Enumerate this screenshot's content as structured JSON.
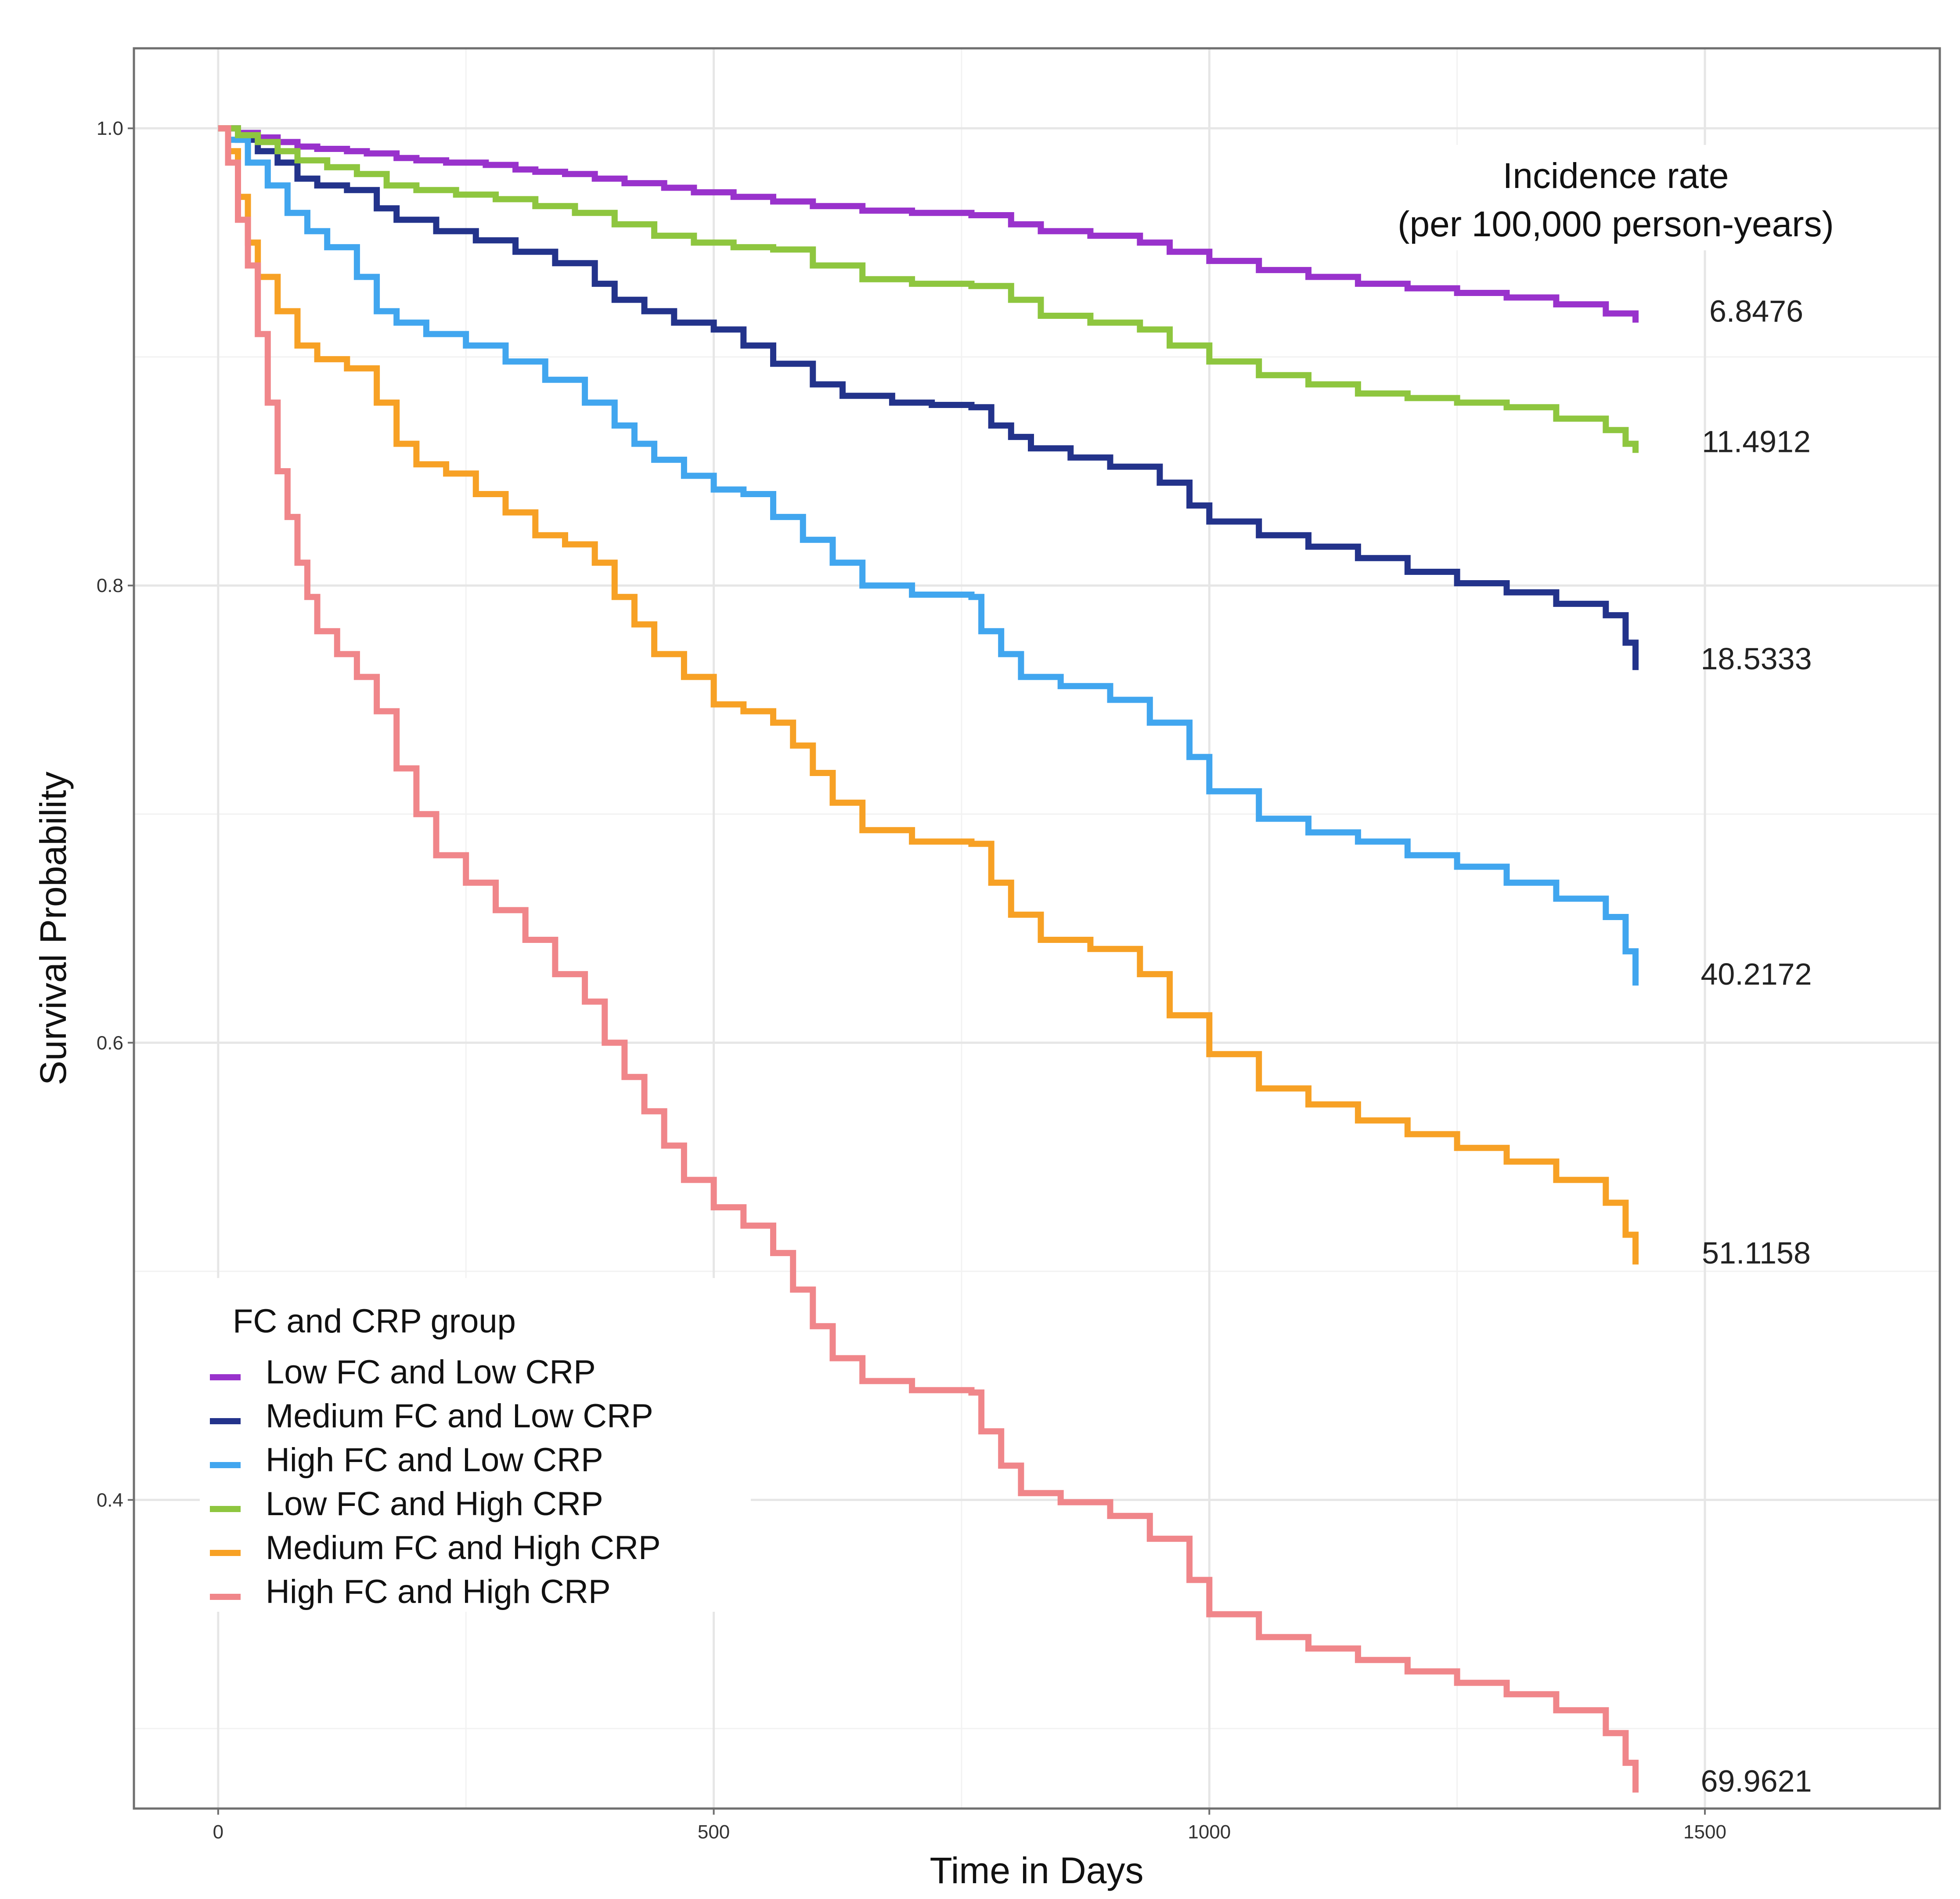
{
  "chart_data": {
    "type": "line",
    "title": "",
    "xlabel": "Time in Days",
    "ylabel": "Survival Probability",
    "xlim": [
      -85,
      1737
    ],
    "ylim": [
      0.265,
      1.035
    ],
    "x_ticks": [
      0,
      500,
      1000,
      1500
    ],
    "x_tick_labels": [
      "0",
      "500",
      "1000",
      "1500"
    ],
    "y_ticks": [
      0.4,
      0.6,
      0.8,
      1.0
    ],
    "y_tick_labels": [
      "0.4",
      "0.6",
      "0.8",
      "1.0"
    ],
    "grid": true,
    "legend_title": "FC and CRP group",
    "legend_position": "bottom-left",
    "annotation": {
      "line1": "Incidence rate",
      "line2": "(per 100,000 person-years)"
    },
    "series": [
      {
        "name": "Low FC and Low CRP",
        "color": "#9932cc",
        "incidence_rate": "6.8476",
        "x": [
          0,
          20,
          40,
          60,
          80,
          100,
          130,
          150,
          180,
          200,
          230,
          270,
          300,
          320,
          350,
          380,
          410,
          450,
          480,
          520,
          560,
          600,
          650,
          700,
          760,
          800,
          830,
          880,
          930,
          960,
          1000,
          1050,
          1100,
          1150,
          1200,
          1250,
          1300,
          1350,
          1400,
          1430
        ],
        "y": [
          1.0,
          0.998,
          0.996,
          0.994,
          0.992,
          0.991,
          0.99,
          0.989,
          0.987,
          0.986,
          0.985,
          0.984,
          0.982,
          0.981,
          0.98,
          0.978,
          0.976,
          0.974,
          0.972,
          0.97,
          0.968,
          0.966,
          0.964,
          0.963,
          0.962,
          0.958,
          0.955,
          0.953,
          0.95,
          0.946,
          0.942,
          0.938,
          0.935,
          0.932,
          0.93,
          0.928,
          0.926,
          0.923,
          0.919,
          0.915
        ]
      },
      {
        "name": "Medium FC and Low CRP",
        "color": "#23338b",
        "incidence_rate": "18.5333",
        "x": [
          0,
          20,
          40,
          60,
          80,
          100,
          130,
          160,
          180,
          220,
          260,
          300,
          340,
          380,
          400,
          430,
          460,
          500,
          530,
          560,
          600,
          630,
          680,
          720,
          760,
          780,
          800,
          820,
          860,
          900,
          950,
          980,
          1000,
          1050,
          1100,
          1150,
          1200,
          1250,
          1300,
          1350,
          1400,
          1420,
          1430
        ],
        "y": [
          1.0,
          0.995,
          0.99,
          0.985,
          0.978,
          0.975,
          0.973,
          0.965,
          0.96,
          0.955,
          0.951,
          0.946,
          0.941,
          0.932,
          0.925,
          0.92,
          0.915,
          0.912,
          0.905,
          0.897,
          0.888,
          0.883,
          0.88,
          0.879,
          0.878,
          0.87,
          0.865,
          0.86,
          0.856,
          0.852,
          0.845,
          0.835,
          0.828,
          0.822,
          0.817,
          0.812,
          0.806,
          0.801,
          0.797,
          0.792,
          0.787,
          0.775,
          0.763
        ]
      },
      {
        "name": "High FC and Low CRP",
        "color": "#41a6ef",
        "incidence_rate": "40.2172",
        "x": [
          0,
          10,
          30,
          50,
          70,
          90,
          110,
          140,
          160,
          180,
          210,
          250,
          290,
          330,
          370,
          400,
          420,
          440,
          470,
          500,
          530,
          560,
          590,
          620,
          650,
          700,
          760,
          770,
          790,
          810,
          850,
          900,
          940,
          980,
          1000,
          1050,
          1100,
          1150,
          1200,
          1250,
          1300,
          1350,
          1400,
          1420,
          1430
        ],
        "y": [
          1.0,
          0.995,
          0.985,
          0.975,
          0.963,
          0.955,
          0.948,
          0.935,
          0.92,
          0.915,
          0.91,
          0.905,
          0.898,
          0.89,
          0.88,
          0.87,
          0.862,
          0.855,
          0.848,
          0.842,
          0.84,
          0.83,
          0.82,
          0.81,
          0.8,
          0.796,
          0.795,
          0.78,
          0.77,
          0.76,
          0.756,
          0.75,
          0.74,
          0.725,
          0.71,
          0.698,
          0.692,
          0.688,
          0.682,
          0.677,
          0.67,
          0.663,
          0.655,
          0.64,
          0.625
        ]
      },
      {
        "name": "Low FC and High CRP",
        "color": "#8ec63f",
        "incidence_rate": "11.4912",
        "x": [
          0,
          20,
          40,
          60,
          80,
          110,
          140,
          170,
          200,
          240,
          280,
          320,
          360,
          400,
          440,
          480,
          520,
          560,
          600,
          650,
          700,
          760,
          800,
          830,
          880,
          930,
          960,
          1000,
          1050,
          1100,
          1150,
          1200,
          1250,
          1300,
          1350,
          1400,
          1420,
          1430
        ],
        "y": [
          1.0,
          0.997,
          0.994,
          0.99,
          0.986,
          0.983,
          0.98,
          0.975,
          0.973,
          0.971,
          0.969,
          0.966,
          0.963,
          0.958,
          0.953,
          0.95,
          0.948,
          0.947,
          0.94,
          0.934,
          0.932,
          0.931,
          0.925,
          0.918,
          0.915,
          0.912,
          0.905,
          0.898,
          0.892,
          0.888,
          0.884,
          0.882,
          0.88,
          0.878,
          0.873,
          0.868,
          0.862,
          0.858
        ]
      },
      {
        "name": "Medium FC and High CRP",
        "color": "#f7a125",
        "incidence_rate": "51.1158",
        "x": [
          0,
          10,
          20,
          30,
          40,
          60,
          80,
          100,
          130,
          160,
          180,
          200,
          230,
          260,
          290,
          320,
          350,
          380,
          400,
          420,
          440,
          470,
          500,
          530,
          560,
          580,
          600,
          620,
          650,
          700,
          760,
          780,
          800,
          830,
          880,
          930,
          960,
          1000,
          1050,
          1100,
          1150,
          1200,
          1250,
          1300,
          1350,
          1400,
          1420,
          1430
        ],
        "y": [
          1.0,
          0.99,
          0.97,
          0.95,
          0.935,
          0.92,
          0.905,
          0.899,
          0.895,
          0.88,
          0.862,
          0.853,
          0.849,
          0.84,
          0.832,
          0.822,
          0.818,
          0.81,
          0.795,
          0.783,
          0.77,
          0.76,
          0.748,
          0.745,
          0.74,
          0.73,
          0.718,
          0.705,
          0.693,
          0.688,
          0.687,
          0.67,
          0.656,
          0.645,
          0.641,
          0.63,
          0.612,
          0.595,
          0.58,
          0.573,
          0.566,
          0.56,
          0.554,
          0.548,
          0.54,
          0.53,
          0.516,
          0.503
        ]
      },
      {
        "name": "High FC and High CRP",
        "color": "#f0868a",
        "incidence_rate": "69.9621",
        "x": [
          0,
          10,
          20,
          30,
          40,
          50,
          60,
          70,
          80,
          90,
          100,
          120,
          140,
          160,
          180,
          200,
          220,
          250,
          280,
          310,
          340,
          370,
          390,
          410,
          430,
          450,
          470,
          500,
          530,
          560,
          580,
          600,
          620,
          650,
          700,
          760,
          770,
          790,
          810,
          850,
          900,
          940,
          980,
          1000,
          1050,
          1100,
          1150,
          1200,
          1250,
          1300,
          1350,
          1400,
          1420,
          1430
        ],
        "y": [
          1.0,
          0.985,
          0.96,
          0.94,
          0.91,
          0.88,
          0.85,
          0.83,
          0.81,
          0.795,
          0.78,
          0.77,
          0.76,
          0.745,
          0.72,
          0.7,
          0.682,
          0.67,
          0.658,
          0.645,
          0.63,
          0.618,
          0.6,
          0.585,
          0.57,
          0.555,
          0.54,
          0.528,
          0.52,
          0.508,
          0.492,
          0.476,
          0.462,
          0.452,
          0.448,
          0.447,
          0.43,
          0.415,
          0.403,
          0.399,
          0.393,
          0.383,
          0.365,
          0.35,
          0.34,
          0.335,
          0.33,
          0.325,
          0.32,
          0.315,
          0.308,
          0.298,
          0.285,
          0.272
        ]
      }
    ]
  }
}
